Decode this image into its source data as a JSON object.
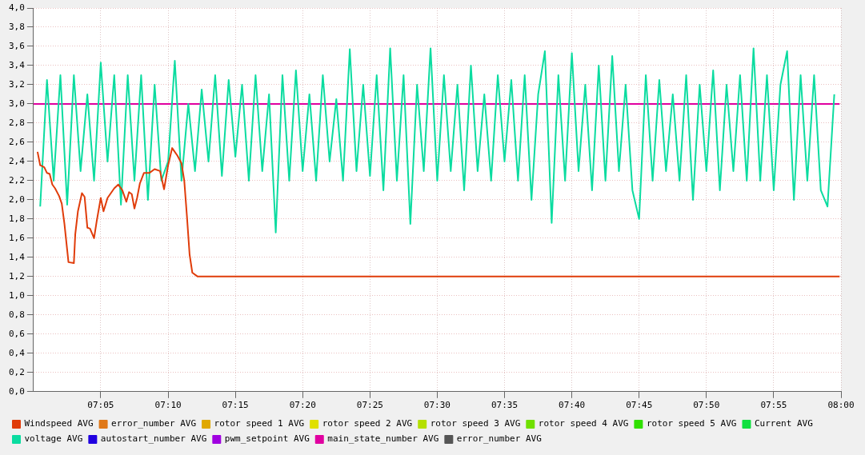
{
  "chart_data": {
    "type": "line",
    "xlim": [
      7.0,
      8.0
    ],
    "xticks": [
      {
        "value": 7.0833,
        "label": "07:05"
      },
      {
        "value": 7.1667,
        "label": "07:10"
      },
      {
        "value": 7.25,
        "label": "07:15"
      },
      {
        "value": 7.3333,
        "label": "07:20"
      },
      {
        "value": 7.4167,
        "label": "07:25"
      },
      {
        "value": 7.5,
        "label": "07:30"
      },
      {
        "value": 7.5833,
        "label": "07:35"
      },
      {
        "value": 7.6667,
        "label": "07:40"
      },
      {
        "value": 7.75,
        "label": "07:45"
      },
      {
        "value": 7.8333,
        "label": "07:50"
      },
      {
        "value": 7.9167,
        "label": "07:55"
      },
      {
        "value": 8.0,
        "label": "08:00"
      }
    ],
    "ylim": [
      0,
      4
    ],
    "yticks": [
      {
        "value": 0,
        "label": "0,0"
      },
      {
        "value": 0.2,
        "label": "0,2"
      },
      {
        "value": 0.4,
        "label": "0,4"
      },
      {
        "value": 0.6,
        "label": "0,6"
      },
      {
        "value": 0.8,
        "label": "0,8"
      },
      {
        "value": 1,
        "label": "1,0"
      },
      {
        "value": 1.2,
        "label": "1,2"
      },
      {
        "value": 1.4,
        "label": "1,4"
      },
      {
        "value": 1.6,
        "label": "1,6"
      },
      {
        "value": 1.8,
        "label": "1,8"
      },
      {
        "value": 2,
        "label": "2,0"
      },
      {
        "value": 2.2,
        "label": "2,2"
      },
      {
        "value": 2.4,
        "label": "2,4"
      },
      {
        "value": 2.6,
        "label": "2,6"
      },
      {
        "value": 2.8,
        "label": "2,8"
      },
      {
        "value": 3,
        "label": "3,0"
      },
      {
        "value": 3.2,
        "label": "3,2"
      },
      {
        "value": 3.4,
        "label": "3,4"
      },
      {
        "value": 3.6,
        "label": "3,6"
      },
      {
        "value": 3.8,
        "label": "3,8"
      },
      {
        "value": 4,
        "label": "4,0"
      }
    ],
    "grid": true,
    "legend": "bottom",
    "marker": "none",
    "line_style": "solid",
    "series": [
      {
        "name": "Windspeed AVG",
        "color": "#e03c0a",
        "x": [
          7.005,
          7.0083,
          7.0133,
          7.0167,
          7.02,
          7.0233,
          7.0267,
          7.0317,
          7.035,
          7.0383,
          7.0417,
          7.0433,
          7.05,
          7.0517,
          7.055,
          7.06,
          7.0633,
          7.0667,
          7.07,
          7.075,
          7.0783,
          7.0833,
          7.0867,
          7.0917,
          7.1,
          7.105,
          7.11,
          7.115,
          7.1183,
          7.1217,
          7.125,
          7.1283,
          7.1317,
          7.1367,
          7.1433,
          7.15,
          7.1567,
          7.1617,
          7.1667,
          7.1717,
          7.1783,
          7.1833,
          7.1867,
          7.19,
          7.1933,
          7.1967,
          7.2033,
          7.9983
        ],
        "values": [
          2.5,
          2.36,
          2.34,
          2.28,
          2.27,
          2.16,
          2.12,
          2.04,
          1.96,
          1.75,
          1.48,
          1.35,
          1.34,
          1.64,
          1.88,
          2.07,
          2.03,
          1.71,
          1.7,
          1.6,
          1.78,
          2.02,
          1.88,
          2.02,
          2.12,
          2.16,
          2.1,
          1.98,
          2.08,
          2.06,
          1.91,
          2.02,
          2.17,
          2.28,
          2.28,
          2.32,
          2.3,
          2.11,
          2.36,
          2.54,
          2.46,
          2.38,
          2.2,
          1.83,
          1.43,
          1.24,
          1.2,
          1.2
        ]
      },
      {
        "name": "error_number AVG",
        "color": "#e07818"
      },
      {
        "name": "rotor speed 1 AVG",
        "color": "#e0a800"
      },
      {
        "name": "rotor speed 2 AVG",
        "color": "#e0e000"
      },
      {
        "name": "rotor speed 3 AVG",
        "color": "#b4e000"
      },
      {
        "name": "rotor speed 4 AVG",
        "color": "#70e000"
      },
      {
        "name": "rotor speed 5 AVG",
        "color": "#30e000"
      },
      {
        "name": "Current AVG",
        "color": "#10e040"
      },
      {
        "name": "voltage AVG",
        "color": "#0bdca0",
        "x": [
          7.0083,
          7.0167,
          7.025,
          7.0333,
          7.0417,
          7.05,
          7.0583,
          7.0667,
          7.075,
          7.0833,
          7.0917,
          7.1,
          7.1083,
          7.1167,
          7.125,
          7.1333,
          7.1417,
          7.15,
          7.1583,
          7.1667,
          7.175,
          7.1833,
          7.1917,
          7.2,
          7.2083,
          7.2167,
          7.225,
          7.2333,
          7.2417,
          7.25,
          7.2583,
          7.2667,
          7.275,
          7.2833,
          7.2917,
          7.3,
          7.3083,
          7.3167,
          7.325,
          7.3333,
          7.3417,
          7.35,
          7.3583,
          7.3667,
          7.375,
          7.3833,
          7.3917,
          7.4,
          7.4083,
          7.4167,
          7.425,
          7.4333,
          7.4417,
          7.45,
          7.4583,
          7.4667,
          7.475,
          7.4833,
          7.4917,
          7.5,
          7.5083,
          7.5167,
          7.525,
          7.5333,
          7.5417,
          7.55,
          7.5583,
          7.5667,
          7.575,
          7.5833,
          7.5917,
          7.6,
          7.6083,
          7.6167,
          7.625,
          7.6333,
          7.6417,
          7.65,
          7.6583,
          7.6667,
          7.675,
          7.6833,
          7.6917,
          7.7,
          7.7083,
          7.7167,
          7.725,
          7.7333,
          7.7417,
          7.75,
          7.7583,
          7.7667,
          7.775,
          7.7833,
          7.7917,
          7.8,
          7.8083,
          7.8167,
          7.825,
          7.8333,
          7.8417,
          7.85,
          7.8583,
          7.8667,
          7.875,
          7.8833,
          7.8917,
          7.9,
          7.9083,
          7.9167,
          7.925,
          7.9333,
          7.9417,
          7.95,
          7.9583,
          7.9667,
          7.975,
          7.9833,
          7.9917
        ],
        "values": [
          1.93,
          3.25,
          2.2,
          3.3,
          1.95,
          3.3,
          2.3,
          3.1,
          2.2,
          3.43,
          2.4,
          3.3,
          1.95,
          3.3,
          2.2,
          3.3,
          2.0,
          3.2,
          2.2,
          2.4,
          3.45,
          2.2,
          3.0,
          2.3,
          3.15,
          2.4,
          3.3,
          2.25,
          3.25,
          2.45,
          3.2,
          2.2,
          3.3,
          2.3,
          3.1,
          1.66,
          3.3,
          2.2,
          3.35,
          2.3,
          3.1,
          2.2,
          3.3,
          2.4,
          3.05,
          2.2,
          3.57,
          2.3,
          3.2,
          2.25,
          3.3,
          2.1,
          3.58,
          2.2,
          3.3,
          1.75,
          3.2,
          2.3,
          3.58,
          2.2,
          3.3,
          2.3,
          3.2,
          2.1,
          3.4,
          2.3,
          3.1,
          2.2,
          3.3,
          2.4,
          3.25,
          2.2,
          3.3,
          2.0,
          3.1,
          3.55,
          1.76,
          3.3,
          2.2,
          3.53,
          2.3,
          3.2,
          2.1,
          3.4,
          2.2,
          3.5,
          2.3,
          3.2,
          2.1,
          1.8,
          3.3,
          2.2,
          3.25,
          2.3,
          3.1,
          2.2,
          3.3,
          2.0,
          3.2,
          2.3,
          3.35,
          2.1,
          3.2,
          2.3,
          3.3,
          2.2,
          3.58,
          2.2,
          3.3,
          2.1,
          3.2,
          3.55,
          2.0,
          3.3,
          2.2,
          3.3,
          2.1,
          1.93,
          3.1
        ]
      },
      {
        "name": "autostart_number AVG",
        "color": "#2000e0"
      },
      {
        "name": "pwm_setpoint AVG",
        "color": "#a000e0"
      },
      {
        "name": "main_state_number AVG",
        "color": "#e000a0",
        "x": [
          7.0,
          7.9983
        ],
        "values": [
          3.0,
          3.0
        ]
      },
      {
        "name": "error_number AVG",
        "color": "#555555"
      }
    ]
  }
}
